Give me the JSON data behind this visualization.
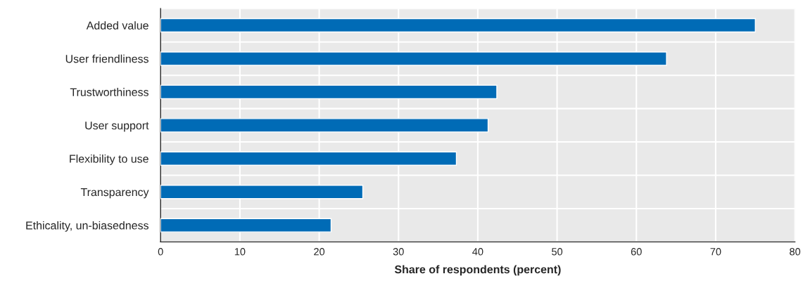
{
  "chart_data": {
    "type": "bar",
    "orientation": "horizontal",
    "xlabel": "Share of respondents (percent)",
    "categories": [
      "Added value",
      "User friendliness",
      "Trustworthiness",
      "User support",
      "Flexibility to use",
      "Transparency",
      "Ethicality, un-biasedness"
    ],
    "values": [
      75,
      63.8,
      42.4,
      41.3,
      37.3,
      25.5,
      21.5
    ],
    "color": "#006bb6",
    "xlim": [
      0,
      80
    ],
    "xticks": [
      0,
      10,
      20,
      30,
      40,
      50,
      60,
      70,
      80
    ],
    "grid": true
  }
}
